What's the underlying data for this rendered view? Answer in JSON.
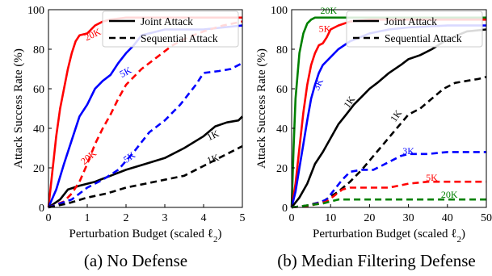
{
  "chart_data": [
    {
      "type": "line",
      "caption": "(a) No Defense",
      "xlabel": "Perturbation Budget (scaled ℓ2)",
      "ylabel": "Attack Success Rate (%)",
      "xlim": [
        0,
        5
      ],
      "ylim": [
        0,
        100
      ],
      "xticks": [
        "0",
        "1",
        "2",
        "3",
        "4",
        "5"
      ],
      "yticks": [
        "0",
        "20",
        "40",
        "60",
        "80",
        "100"
      ],
      "grid": false,
      "legend": {
        "placement": "top-right",
        "entries": [
          {
            "label": "Joint Attack",
            "style": "solid"
          },
          {
            "label": "Sequential Attack",
            "style": "dashed"
          }
        ]
      },
      "series": [
        {
          "label": "20K",
          "attack": "joint",
          "color": "#ff0000",
          "points": [
            [
              0,
              0
            ],
            [
              0.1,
              18
            ],
            [
              0.2,
              36
            ],
            [
              0.3,
              50
            ],
            [
              0.4,
              60
            ],
            [
              0.5,
              70
            ],
            [
              0.6,
              78
            ],
            [
              0.7,
              84
            ],
            [
              0.8,
              87
            ],
            [
              1.0,
              88
            ],
            [
              1.1,
              90
            ],
            [
              1.2,
              92
            ],
            [
              1.4,
              94
            ],
            [
              1.6,
              95
            ],
            [
              2.0,
              96
            ],
            [
              5.0,
              96
            ]
          ]
        },
        {
          "label": "5K",
          "attack": "joint",
          "color": "#0000ff",
          "points": [
            [
              0,
              0
            ],
            [
              0.2,
              9
            ],
            [
              0.4,
              22
            ],
            [
              0.6,
              34
            ],
            [
              0.8,
              46
            ],
            [
              1.0,
              52
            ],
            [
              1.2,
              60
            ],
            [
              1.4,
              64
            ],
            [
              1.6,
              67
            ],
            [
              1.8,
              73
            ],
            [
              2.0,
              78
            ],
            [
              2.2,
              82
            ],
            [
              2.4,
              87
            ],
            [
              2.6,
              88
            ],
            [
              3.0,
              90
            ],
            [
              3.5,
              90
            ],
            [
              4.0,
              90
            ],
            [
              4.5,
              91
            ],
            [
              5.0,
              92
            ]
          ]
        },
        {
          "label": "1K",
          "attack": "joint",
          "color": "#000000",
          "points": [
            [
              0,
              0
            ],
            [
              0.3,
              4
            ],
            [
              0.5,
              9
            ],
            [
              0.8,
              11
            ],
            [
              1.2,
              13
            ],
            [
              1.6,
              16
            ],
            [
              2.0,
              19
            ],
            [
              2.5,
              22
            ],
            [
              3.0,
              25
            ],
            [
              3.5,
              30
            ],
            [
              4.0,
              36
            ],
            [
              4.3,
              41
            ],
            [
              4.6,
              43
            ],
            [
              4.9,
              44
            ],
            [
              5.0,
              46
            ]
          ]
        },
        {
          "label": "20K",
          "attack": "sequential",
          "color": "#ff0000",
          "points": [
            [
              0,
              0
            ],
            [
              0.4,
              3
            ],
            [
              0.6,
              7
            ],
            [
              0.8,
              13
            ],
            [
              1.0,
              22
            ],
            [
              1.2,
              32
            ],
            [
              1.4,
              40
            ],
            [
              1.6,
              47
            ],
            [
              1.8,
              55
            ],
            [
              2.0,
              62
            ],
            [
              2.4,
              70
            ],
            [
              2.8,
              76
            ],
            [
              3.2,
              82
            ],
            [
              3.6,
              86
            ],
            [
              4.0,
              89
            ],
            [
              4.5,
              92
            ],
            [
              5.0,
              94
            ]
          ]
        },
        {
          "label": "5K",
          "attack": "sequential",
          "color": "#0000ff",
          "points": [
            [
              0,
              0
            ],
            [
              0.6,
              4
            ],
            [
              1.0,
              10
            ],
            [
              1.4,
              14
            ],
            [
              1.8,
              19
            ],
            [
              2.2,
              28
            ],
            [
              2.6,
              38
            ],
            [
              3.0,
              44
            ],
            [
              3.4,
              52
            ],
            [
              3.8,
              62
            ],
            [
              4.0,
              68
            ],
            [
              4.4,
              69
            ],
            [
              4.7,
              70
            ],
            [
              5.0,
              73
            ]
          ]
        },
        {
          "label": "1K",
          "attack": "sequential",
          "color": "#000000",
          "points": [
            [
              0,
              0
            ],
            [
              0.5,
              2
            ],
            [
              1.0,
              5
            ],
            [
              1.5,
              7
            ],
            [
              2.0,
              10
            ],
            [
              2.5,
              12
            ],
            [
              3.0,
              14
            ],
            [
              3.5,
              16
            ],
            [
              4.0,
              21
            ],
            [
              4.5,
              26
            ],
            [
              5.0,
              31
            ]
          ]
        }
      ],
      "curve_labels": [
        {
          "text": "20K",
          "color": "#ff0000",
          "x": 1.15,
          "y": 87,
          "angle": -25
        },
        {
          "text": "5K",
          "color": "#0000ff",
          "x": 2.0,
          "y": 68,
          "angle": -28
        },
        {
          "text": "1K",
          "color": "#000000",
          "x": 4.25,
          "y": 36,
          "angle": -25
        },
        {
          "text": "20K",
          "color": "#ff0000",
          "x": 1.05,
          "y": 25,
          "angle": -40
        },
        {
          "text": "5K",
          "color": "#0000ff",
          "x": 2.1,
          "y": 25,
          "angle": -35
        },
        {
          "text": "1K",
          "color": "#000000",
          "x": 4.25,
          "y": 24,
          "angle": -20
        }
      ]
    },
    {
      "type": "line",
      "caption": "(b) Median Filtering Defense",
      "xlabel": "Perturbation Budget (scaled ℓ2)",
      "ylabel": "Attack Success Rate (%)",
      "xlim": [
        0,
        50
      ],
      "ylim": [
        0,
        100
      ],
      "xticks": [
        "0",
        "10",
        "20",
        "30",
        "40",
        "50"
      ],
      "yticks": [
        "0",
        "20",
        "40",
        "60",
        "80",
        "100"
      ],
      "grid": false,
      "legend": {
        "placement": "top-right",
        "entries": [
          {
            "label": "Joint Attack",
            "style": "solid"
          },
          {
            "label": "Sequential Attack",
            "style": "dashed"
          }
        ]
      },
      "series": [
        {
          "label": "20K",
          "attack": "joint",
          "color": "#008000",
          "points": [
            [
              0,
              0
            ],
            [
              0.5,
              30
            ],
            [
              1,
              55
            ],
            [
              2,
              78
            ],
            [
              3,
              88
            ],
            [
              4,
              93
            ],
            [
              5,
              95
            ],
            [
              6,
              96
            ],
            [
              50,
              96
            ]
          ]
        },
        {
          "label": "5K",
          "attack": "joint",
          "color": "#ff0000",
          "points": [
            [
              0,
              0
            ],
            [
              1,
              12
            ],
            [
              2,
              30
            ],
            [
              3,
              48
            ],
            [
              4,
              62
            ],
            [
              5,
              72
            ],
            [
              6,
              78
            ],
            [
              7,
              82
            ],
            [
              8,
              83
            ],
            [
              9,
              86
            ],
            [
              10,
              90
            ],
            [
              12,
              92
            ],
            [
              15,
              94
            ],
            [
              20,
              95
            ],
            [
              50,
              95
            ]
          ]
        },
        {
          "label": "3K",
          "attack": "joint",
          "color": "#0000ff",
          "points": [
            [
              0,
              0
            ],
            [
              1,
              8
            ],
            [
              2,
              20
            ],
            [
              3,
              32
            ],
            [
              4,
              44
            ],
            [
              5,
              55
            ],
            [
              6,
              62
            ],
            [
              7,
              68
            ],
            [
              8,
              72
            ],
            [
              10,
              76
            ],
            [
              12,
              80
            ],
            [
              15,
              84
            ],
            [
              20,
              88
            ],
            [
              25,
              90
            ],
            [
              30,
              91
            ],
            [
              40,
              92
            ],
            [
              50,
              92
            ]
          ]
        },
        {
          "label": "1K",
          "attack": "joint",
          "color": "#000000",
          "points": [
            [
              0,
              0
            ],
            [
              2,
              5
            ],
            [
              4,
              12
            ],
            [
              6,
              22
            ],
            [
              8,
              28
            ],
            [
              10,
              35
            ],
            [
              12,
              42
            ],
            [
              14,
              47
            ],
            [
              16,
              52
            ],
            [
              18,
              56
            ],
            [
              20,
              60
            ],
            [
              22,
              63
            ],
            [
              25,
              68
            ],
            [
              28,
              72
            ],
            [
              30,
              75
            ],
            [
              33,
              77
            ],
            [
              36,
              80
            ],
            [
              40,
              85
            ],
            [
              45,
              89
            ],
            [
              50,
              90
            ]
          ]
        },
        {
          "label": "1K",
          "attack": "sequential",
          "color": "#000000",
          "points": [
            [
              0,
              0
            ],
            [
              4,
              1
            ],
            [
              8,
              3
            ],
            [
              12,
              8
            ],
            [
              15,
              13
            ],
            [
              18,
              19
            ],
            [
              21,
              26
            ],
            [
              24,
              33
            ],
            [
              27,
              40
            ],
            [
              30,
              47
            ],
            [
              33,
              50
            ],
            [
              36,
              55
            ],
            [
              39,
              60
            ],
            [
              42,
              63
            ],
            [
              45,
              64
            ],
            [
              48,
              65
            ],
            [
              50,
              66
            ]
          ]
        },
        {
          "label": "3K",
          "attack": "sequential",
          "color": "#0000ff",
          "points": [
            [
              0,
              0
            ],
            [
              5,
              1
            ],
            [
              9,
              4
            ],
            [
              11,
              9
            ],
            [
              13,
              14
            ],
            [
              15,
              18
            ],
            [
              18,
              19
            ],
            [
              21,
              19
            ],
            [
              23,
              21
            ],
            [
              25,
              23
            ],
            [
              28,
              26
            ],
            [
              30,
              27
            ],
            [
              35,
              27
            ],
            [
              40,
              28
            ],
            [
              45,
              28
            ],
            [
              50,
              28
            ]
          ]
        },
        {
          "label": "5K",
          "attack": "sequential",
          "color": "#ff0000",
          "points": [
            [
              0,
              0
            ],
            [
              5,
              1
            ],
            [
              9,
              3
            ],
            [
              11,
              6
            ],
            [
              13,
              9
            ],
            [
              15,
              10
            ],
            [
              20,
              10
            ],
            [
              25,
              10
            ],
            [
              30,
              12
            ],
            [
              35,
              13
            ],
            [
              40,
              13
            ],
            [
              45,
              13
            ],
            [
              50,
              13
            ]
          ]
        },
        {
          "label": "20K",
          "attack": "sequential",
          "color": "#008000",
          "points": [
            [
              0,
              0
            ],
            [
              4,
              1
            ],
            [
              8,
              2
            ],
            [
              10,
              3
            ],
            [
              12,
              4
            ],
            [
              50,
              4
            ]
          ]
        }
      ],
      "curve_labels": [
        {
          "text": "20K",
          "color": "#008000",
          "x": 9.5,
          "y": 99,
          "angle": 0
        },
        {
          "text": "5K",
          "color": "#ff0000",
          "x": 8.5,
          "y": 90,
          "angle": 0
        },
        {
          "text": "3K",
          "color": "#0000ff",
          "x": 7.0,
          "y": 62,
          "angle": -65
        },
        {
          "text": "1K",
          "color": "#000000",
          "x": 15.0,
          "y": 53,
          "angle": -55
        },
        {
          "text": "1K",
          "color": "#000000",
          "x": 27.0,
          "y": 46,
          "angle": -55
        },
        {
          "text": "3K",
          "color": "#0000ff",
          "x": 30.0,
          "y": 28,
          "angle": 0
        },
        {
          "text": "5K",
          "color": "#ff0000",
          "x": 36.0,
          "y": 14.5,
          "angle": 0
        },
        {
          "text": "20K",
          "color": "#008000",
          "x": 40.5,
          "y": 6,
          "angle": 0
        }
      ]
    }
  ]
}
